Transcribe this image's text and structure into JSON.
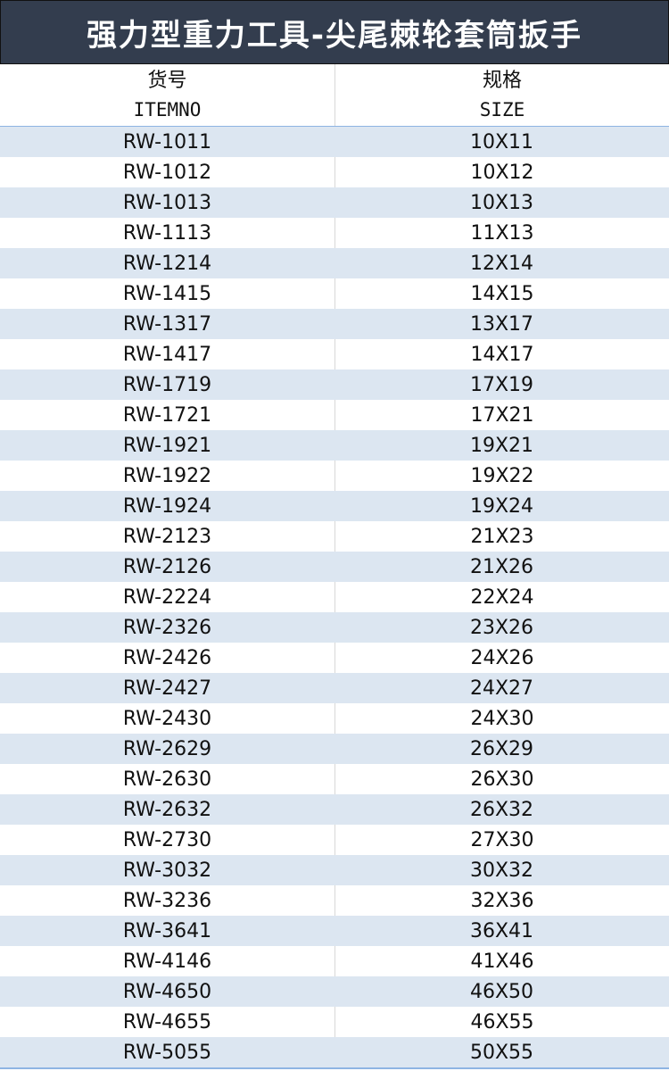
{
  "title": "强力型重力工具-尖尾棘轮套筒扳手",
  "columns": [
    {
      "label_cn": "货号",
      "label_en": "ITEMNO"
    },
    {
      "label_cn": "规格",
      "label_en": "SIZE"
    }
  ],
  "rows": [
    [
      "RW-1011",
      "10X11"
    ],
    [
      "RW-1012",
      "10X12"
    ],
    [
      "RW-1013",
      "10X13"
    ],
    [
      "RW-1113",
      "11X13"
    ],
    [
      "RW-1214",
      "12X14"
    ],
    [
      "RW-1415",
      "14X15"
    ],
    [
      "RW-1317",
      "13X17"
    ],
    [
      "RW-1417",
      "14X17"
    ],
    [
      "RW-1719",
      "17X19"
    ],
    [
      "RW-1721",
      "17X21"
    ],
    [
      "RW-1921",
      "19X21"
    ],
    [
      "RW-1922",
      "19X22"
    ],
    [
      "RW-1924",
      "19X24"
    ],
    [
      "RW-2123",
      "21X23"
    ],
    [
      "RW-2126",
      "21X26"
    ],
    [
      "RW-2224",
      "22X24"
    ],
    [
      "RW-2326",
      "23X26"
    ],
    [
      "RW-2426",
      "24X26"
    ],
    [
      "RW-2427",
      "24X27"
    ],
    [
      "RW-2430",
      "24X30"
    ],
    [
      "RW-2629",
      "26X29"
    ],
    [
      "RW-2630",
      "26X30"
    ],
    [
      "RW-2632",
      "26X32"
    ],
    [
      "RW-2730",
      "27X30"
    ],
    [
      "RW-3032",
      "30X32"
    ],
    [
      "RW-3236",
      "32X36"
    ],
    [
      "RW-3641",
      "36X41"
    ],
    [
      "RW-4146",
      "41X46"
    ],
    [
      "RW-4650",
      "46X50"
    ],
    [
      "RW-4655",
      "46X55"
    ],
    [
      "RW-5055",
      "50X55"
    ]
  ],
  "colors": {
    "title_bg": "#333d4e",
    "band": "#dce6f1"
  }
}
